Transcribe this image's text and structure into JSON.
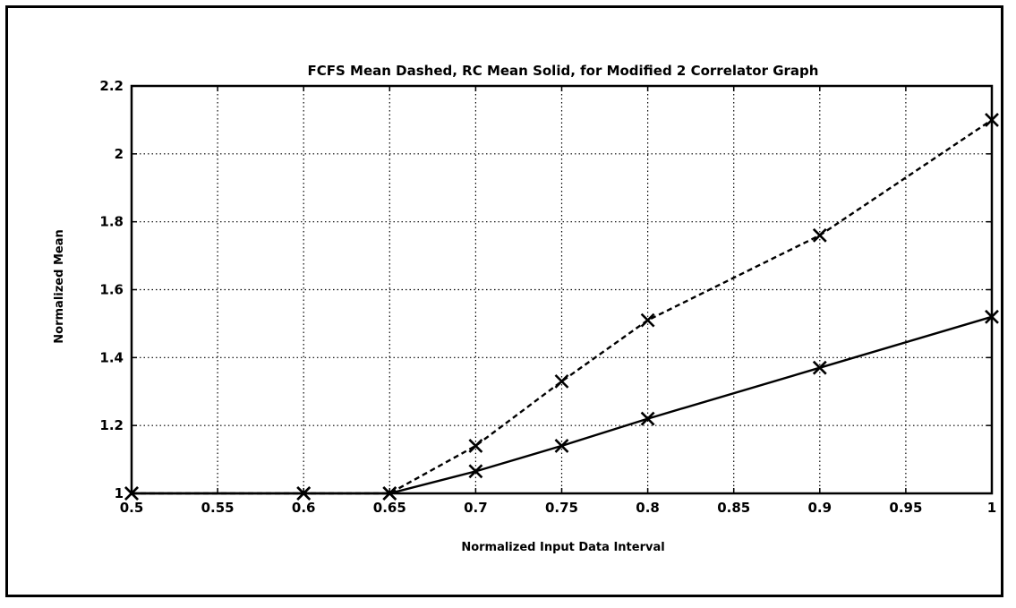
{
  "chart_data": {
    "type": "line",
    "title": "FCFS Mean Dashed, RC Mean Solid, for Modified 2 Correlator Graph",
    "xlabel": "Normalized Input Data Interval",
    "ylabel": "Normalized Mean",
    "xlim": [
      0.5,
      1
    ],
    "ylim": [
      1,
      2.2
    ],
    "xticks": [
      0.5,
      0.55,
      0.6,
      0.65,
      0.7,
      0.75,
      0.8,
      0.85,
      0.9,
      0.95,
      1
    ],
    "xtick_labels": [
      "0.5",
      "0.55",
      "0.6",
      "0.65",
      "0.7",
      "0.75",
      "0.8",
      "0.85",
      "0.9",
      "0.95",
      "1"
    ],
    "yticks": [
      1,
      1.2,
      1.4,
      1.6,
      1.8,
      2,
      2.2
    ],
    "ytick_labels": [
      "1",
      "1.2",
      "1.4",
      "1.6",
      "1.8",
      "2",
      "2.2"
    ],
    "grid": true,
    "marker": "x",
    "series": [
      {
        "style": "dashed",
        "x": [
          0.5,
          0.6,
          0.65,
          0.7,
          0.75,
          0.8,
          0.9,
          1.0
        ],
        "y": [
          1.0,
          1.0,
          1.0,
          1.14,
          1.33,
          1.51,
          1.76,
          2.1
        ]
      },
      {
        "style": "solid",
        "x": [
          0.5,
          0.6,
          0.65,
          0.7,
          0.75,
          0.8,
          0.9,
          1.0
        ],
        "y": [
          1.0,
          1.0,
          1.0,
          1.065,
          1.14,
          1.22,
          1.37,
          1.52
        ]
      }
    ]
  }
}
